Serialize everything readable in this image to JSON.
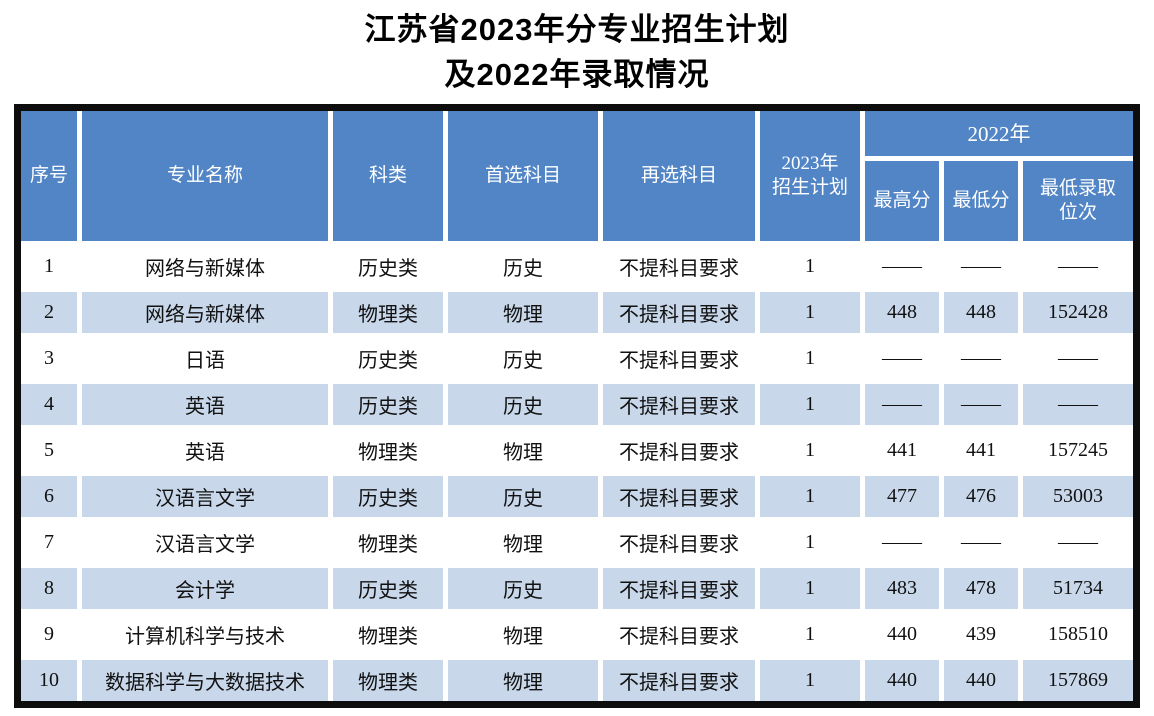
{
  "title": {
    "line1": "江苏省2023年分专业招生计划",
    "line2": "及2022年录取情况"
  },
  "colors": {
    "header_bg": "#5285c6",
    "alt_row_bg": "#c8d7ea",
    "outer_border": "#0d0d0d",
    "title_color": "#000000",
    "header_text": "#ffffff"
  },
  "table": {
    "header": {
      "seq": "序号",
      "major": "专业名称",
      "category": "科类",
      "first_subject": "首选科目",
      "re_subject": "再选科目",
      "plan2023_line1": "2023年",
      "plan2023_line2": "招生计划",
      "year2022": "2022年",
      "max_score": "最高分",
      "min_score": "最低分",
      "min_rank_line1": "最低录取",
      "min_rank_line2": "位次"
    },
    "rows": [
      [
        "1",
        "网络与新媒体",
        "历史类",
        "历史",
        "不提科目要求",
        "1",
        "——",
        "——",
        "——"
      ],
      [
        "2",
        "网络与新媒体",
        "物理类",
        "物理",
        "不提科目要求",
        "1",
        "448",
        "448",
        "152428"
      ],
      [
        "3",
        "日语",
        "历史类",
        "历史",
        "不提科目要求",
        "1",
        "——",
        "——",
        "——"
      ],
      [
        "4",
        "英语",
        "历史类",
        "历史",
        "不提科目要求",
        "1",
        "——",
        "——",
        "——"
      ],
      [
        "5",
        "英语",
        "物理类",
        "物理",
        "不提科目要求",
        "1",
        "441",
        "441",
        "157245"
      ],
      [
        "6",
        "汉语言文学",
        "历史类",
        "历史",
        "不提科目要求",
        "1",
        "477",
        "476",
        "53003"
      ],
      [
        "7",
        "汉语言文学",
        "物理类",
        "物理",
        "不提科目要求",
        "1",
        "——",
        "——",
        "——"
      ],
      [
        "8",
        "会计学",
        "历史类",
        "历史",
        "不提科目要求",
        "1",
        "483",
        "478",
        "51734"
      ],
      [
        "9",
        "计算机科学与技术",
        "物理类",
        "物理",
        "不提科目要求",
        "1",
        "440",
        "439",
        "158510"
      ],
      [
        "10",
        "数据科学与大数据技术",
        "物理类",
        "物理",
        "不提科目要求",
        "1",
        "440",
        "440",
        "157869"
      ]
    ]
  }
}
